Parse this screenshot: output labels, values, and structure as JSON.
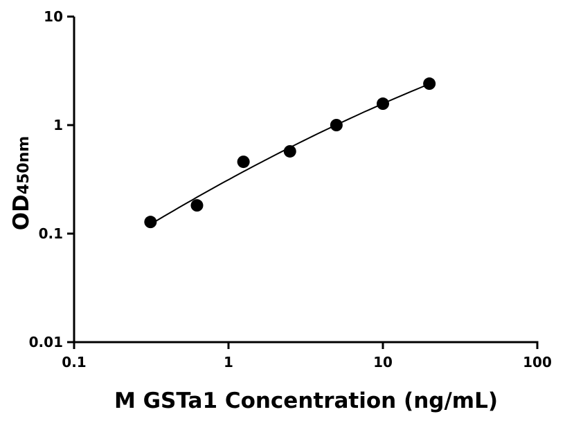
{
  "chart_data": {
    "type": "scatter",
    "title": "",
    "xlabel": "M GSTa1 Concentration (ng/mL)",
    "ylabel_main": "OD",
    "ylabel_sub": "450nm",
    "x_scale": "log",
    "y_scale": "log",
    "xlim": [
      0.1,
      100
    ],
    "ylim": [
      0.01,
      10
    ],
    "x_ticks": [
      0.1,
      1,
      10,
      100
    ],
    "x_tick_labels": [
      "0.1",
      "1",
      "10",
      "100"
    ],
    "y_ticks": [
      0.01,
      0.1,
      1,
      10
    ],
    "y_tick_labels": [
      "0.01",
      "0.1",
      "1",
      "10"
    ],
    "grid": false,
    "legend": "none",
    "fit_line": true,
    "points": [
      {
        "x": 0.3125,
        "y": 0.128
      },
      {
        "x": 0.625,
        "y": 0.182
      },
      {
        "x": 1.25,
        "y": 0.459
      },
      {
        "x": 2.5,
        "y": 0.573
      },
      {
        "x": 5,
        "y": 1.0
      },
      {
        "x": 10,
        "y": 1.575
      },
      {
        "x": 20,
        "y": 2.41
      }
    ],
    "color": "#000000"
  }
}
